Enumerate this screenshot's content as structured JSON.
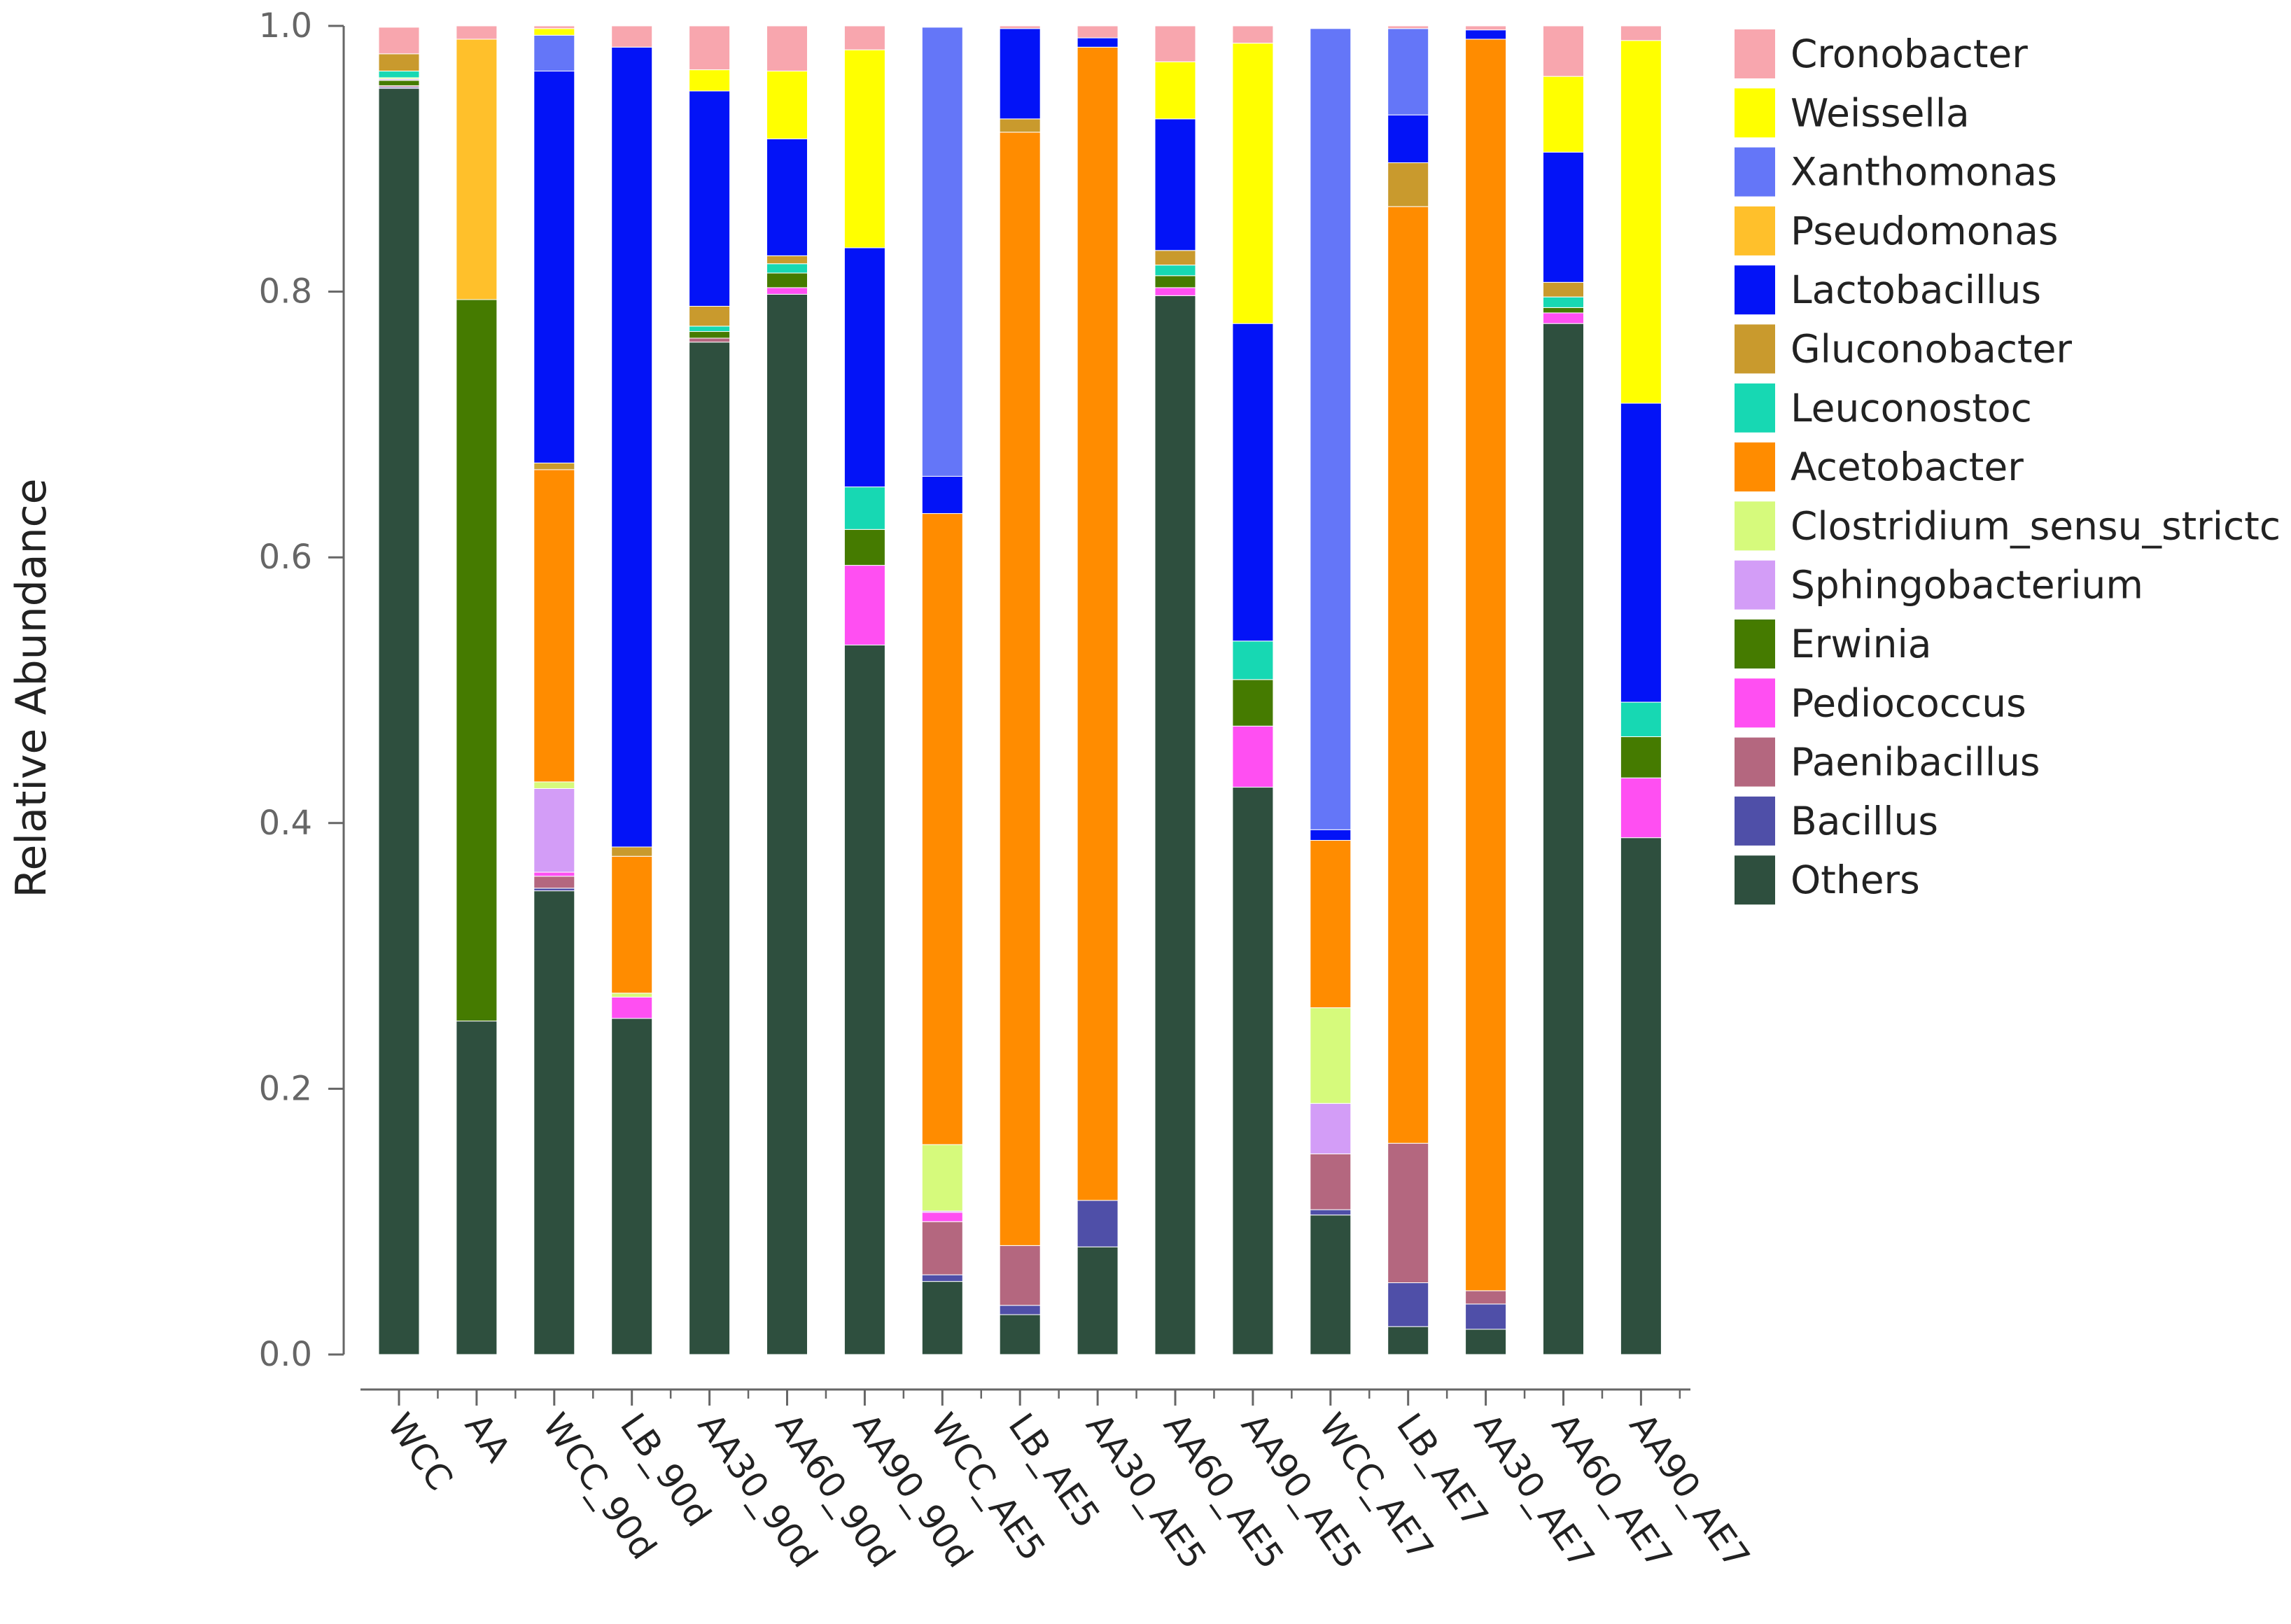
{
  "chart_data": {
    "type": "bar",
    "stacked": true,
    "title": "",
    "xlabel": "",
    "ylabel": "Relative Abundance",
    "ylim": [
      0,
      1.0
    ],
    "yticks": [
      "0.0",
      "0.2",
      "0.4",
      "0.6",
      "0.8",
      "1.0"
    ],
    "legend_position": "right",
    "categories": [
      "WCC",
      "AA",
      "WCC_90d",
      "LB_90d",
      "AA30_90d",
      "AA60_90d",
      "AA90_90d",
      "WCC_AE5",
      "LB_AE5",
      "AA30_AE5",
      "AA60_AE5",
      "AA90_AE5",
      "WCC_AE7",
      "LB_AE7",
      "AA30_AE7",
      "AA60_AE7",
      "AA90_AE7"
    ],
    "series": [
      {
        "name": "Others",
        "color": "#2e4f3e",
        "values": [
          0.953,
          0.251,
          0.349,
          0.253,
          0.762,
          0.798,
          0.534,
          0.055,
          0.03,
          0.081,
          0.797,
          0.427,
          0.105,
          0.021,
          0.019,
          0.776,
          0.389
        ]
      },
      {
        "name": "Bacillus",
        "color": "#4f4fa8",
        "values": [
          0.001,
          0.0,
          0.002,
          0.0,
          0.0,
          0.0,
          0.0,
          0.005,
          0.007,
          0.035,
          0.0,
          0.0,
          0.004,
          0.033,
          0.019,
          0.0,
          0.0
        ]
      },
      {
        "name": "Paenibacillus",
        "color": "#b4677f",
        "values": [
          0.001,
          0.0,
          0.009,
          0.0,
          0.003,
          0.0,
          0.0,
          0.04,
          0.045,
          0.0,
          0.0,
          0.0,
          0.042,
          0.105,
          0.01,
          0.0,
          0.0
        ]
      },
      {
        "name": "Pediococcus",
        "color": "#ff4ff2",
        "values": [
          0.0,
          0.0,
          0.003,
          0.016,
          0.0,
          0.005,
          0.06,
          0.007,
          0.0,
          0.0,
          0.006,
          0.046,
          0.0,
          0.0,
          0.0,
          0.008,
          0.045
        ]
      },
      {
        "name": "Erwinia",
        "color": "#457b00",
        "values": [
          0.004,
          0.543,
          0.0,
          0.0,
          0.005,
          0.011,
          0.027,
          0.0,
          0.0,
          0.0,
          0.009,
          0.035,
          0.0,
          0.0,
          0.0,
          0.004,
          0.031
        ]
      },
      {
        "name": "Sphingobacterium",
        "color": "#d39df7",
        "values": [
          0.001,
          0.0,
          0.063,
          0.0,
          0.0,
          0.0,
          0.0,
          0.001,
          0.0,
          0.0,
          0.0,
          0.0,
          0.038,
          0.0,
          0.0,
          0.0,
          0.0
        ]
      },
      {
        "name": "Clostridium_sensu_strictc",
        "color": "#d6fa7c",
        "values": [
          0.001,
          0.0,
          0.005,
          0.003,
          0.0,
          0.0,
          0.0,
          0.05,
          0.0,
          0.0,
          0.0,
          0.0,
          0.072,
          0.0,
          0.0,
          0.0,
          0.0
        ]
      },
      {
        "name": "Acetobacter",
        "color": "#ff8c00",
        "values": [
          0.0,
          0.0,
          0.235,
          0.103,
          0.0,
          0.0,
          0.0,
          0.475,
          0.838,
          0.868,
          0.0,
          0.0,
          0.126,
          0.705,
          0.942,
          0.0,
          0.0
        ]
      },
      {
        "name": "Leuconostoc",
        "color": "#17d8b3",
        "values": [
          0.005,
          0.0,
          0.0,
          0.0,
          0.004,
          0.007,
          0.032,
          0.0,
          0.0,
          0.0,
          0.008,
          0.029,
          0.0,
          0.0,
          0.0,
          0.008,
          0.026
        ]
      },
      {
        "name": "Gluconobacter",
        "color": "#c99a2d",
        "values": [
          0.013,
          0.0,
          0.005,
          0.007,
          0.015,
          0.006,
          0.0,
          0.0,
          0.01,
          0.0,
          0.011,
          0.0,
          0.0,
          0.033,
          0.0,
          0.011,
          0.0
        ]
      },
      {
        "name": "Lactobacillus",
        "color": "#0313f7",
        "values": [
          0.0,
          0.0,
          0.295,
          0.602,
          0.162,
          0.088,
          0.18,
          0.028,
          0.068,
          0.007,
          0.099,
          0.239,
          0.008,
          0.036,
          0.007,
          0.098,
          0.225
        ]
      },
      {
        "name": "Pseudomonas",
        "color": "#ffc02b",
        "values": [
          0.0,
          0.196,
          0.0,
          0.0,
          0.0,
          0.0,
          0.0,
          0.0,
          0.0,
          0.0,
          0.0,
          0.0,
          0.0,
          0.0,
          0.0,
          0.0,
          0.0
        ]
      },
      {
        "name": "Xanthomonas",
        "color": "#6476f8",
        "values": [
          0.0,
          0.0,
          0.027,
          0.0,
          0.0,
          0.0,
          0.0,
          0.338,
          0.0,
          0.0,
          0.0,
          0.0,
          0.603,
          0.065,
          0.0,
          0.0,
          0.0
        ]
      },
      {
        "name": "Weissella",
        "color": "#ffff00",
        "values": [
          0.0,
          0.0,
          0.005,
          0.0,
          0.016,
          0.051,
          0.149,
          0.0,
          0.0,
          0.0,
          0.043,
          0.211,
          0.0,
          0.0,
          0.0,
          0.057,
          0.273
        ]
      },
      {
        "name": "Cronobacter",
        "color": "#f8a6ae",
        "values": [
          0.02,
          0.01,
          0.002,
          0.016,
          0.033,
          0.034,
          0.018,
          0.0,
          0.002,
          0.009,
          0.027,
          0.013,
          0.0,
          0.002,
          0.003,
          0.038,
          0.011
        ]
      }
    ],
    "legend_order": [
      "Cronobacter",
      "Weissella",
      "Xanthomonas",
      "Pseudomonas",
      "Lactobacillus",
      "Gluconobacter",
      "Leuconostoc",
      "Acetobacter",
      "Clostridium_sensu_strictc",
      "Sphingobacterium",
      "Erwinia",
      "Pediococcus",
      "Paenibacillus",
      "Bacillus",
      "Others"
    ]
  }
}
